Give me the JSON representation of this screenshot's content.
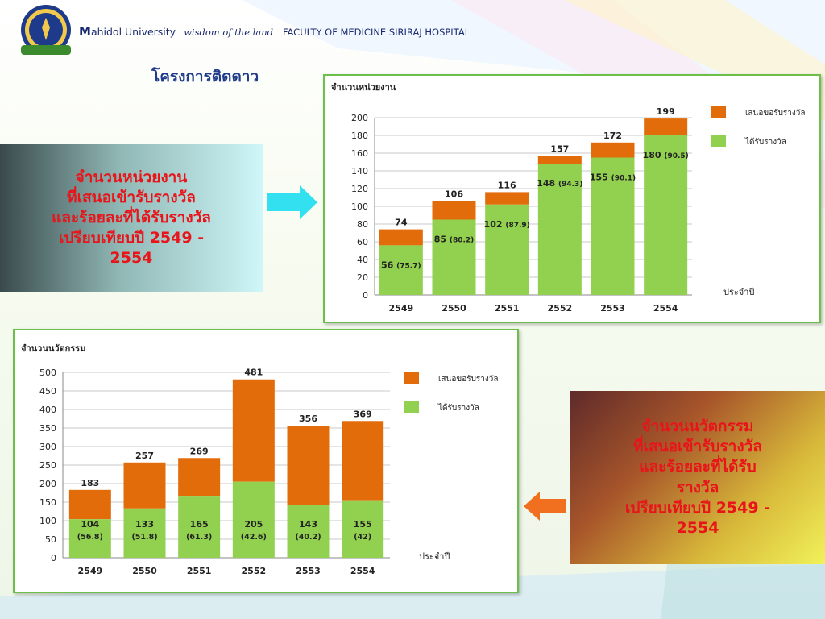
{
  "header": {
    "university_initial": "M",
    "university_rest": "ahidol University",
    "slogan": "wisdom of the land",
    "faculty": "FACULTY OF MEDICINE SIRIRAJ HOSPITAL"
  },
  "page_title": "โครงการติดดาว",
  "callout_top": {
    "lines": [
      "จำนวนหน่วยงาน",
      "ที่เสนอเข้ารับรางวัล",
      "และร้อยละที่ได้รับรางวัล",
      "เปรียบเทียบปี 2549 -",
      "2554"
    ]
  },
  "callout_bottom": {
    "lines": [
      "จำนวนนวัตกรรม",
      "ที่เสนอเข้ารับรางวัล",
      "และร้อยละที่ได้รับ",
      "รางวัล",
      "เปรียบเทียบปี 2549 -",
      "2554"
    ]
  },
  "colors": {
    "submitted": "#e36c0a",
    "awarded": "#92d050",
    "arrow_cyan": "#33e0f0",
    "arrow_orange": "#f07020"
  },
  "chart_data": [
    {
      "type": "bar",
      "title": "จำนวนหน่วยงาน",
      "xlabel": "ประจำปี",
      "categories": [
        "2549",
        "2550",
        "2551",
        "2552",
        "2553",
        "2554"
      ],
      "ylim": [
        0,
        200
      ],
      "yticks": [
        0,
        20,
        40,
        60,
        80,
        100,
        120,
        140,
        160,
        180,
        200
      ],
      "grid": true,
      "legend_position": "right",
      "series": [
        {
          "name": "เสนอขอรับรางวัล",
          "values": [
            74,
            106,
            116,
            157,
            172,
            199
          ]
        },
        {
          "name": "ได้รับรางวัล",
          "values": [
            56,
            85,
            102,
            148,
            155,
            180
          ],
          "percent_labels": [
            "(75.7)",
            "(80.2)",
            "(87.9)",
            "(94.3)",
            "(90.1)",
            "(90.5)"
          ]
        }
      ]
    },
    {
      "type": "bar",
      "title": "จำนวนนวัตกรรม",
      "xlabel": "ประจำปี",
      "categories": [
        "2549",
        "2550",
        "2551",
        "2552",
        "2553",
        "2554"
      ],
      "ylim": [
        0,
        500
      ],
      "yticks": [
        0,
        50,
        100,
        150,
        200,
        250,
        300,
        350,
        400,
        450,
        500
      ],
      "grid": true,
      "legend_position": "right",
      "series": [
        {
          "name": "เสนอขอรับรางวัล",
          "values": [
            183,
            257,
            269,
            481,
            356,
            369
          ]
        },
        {
          "name": "ได้รับรางวัล",
          "values": [
            104,
            133,
            165,
            205,
            143,
            155
          ],
          "percent_labels": [
            "(56.8)",
            "(51.8)",
            "(61.3)",
            "(42.6)",
            "(40.2)",
            "(42)"
          ]
        }
      ]
    }
  ]
}
